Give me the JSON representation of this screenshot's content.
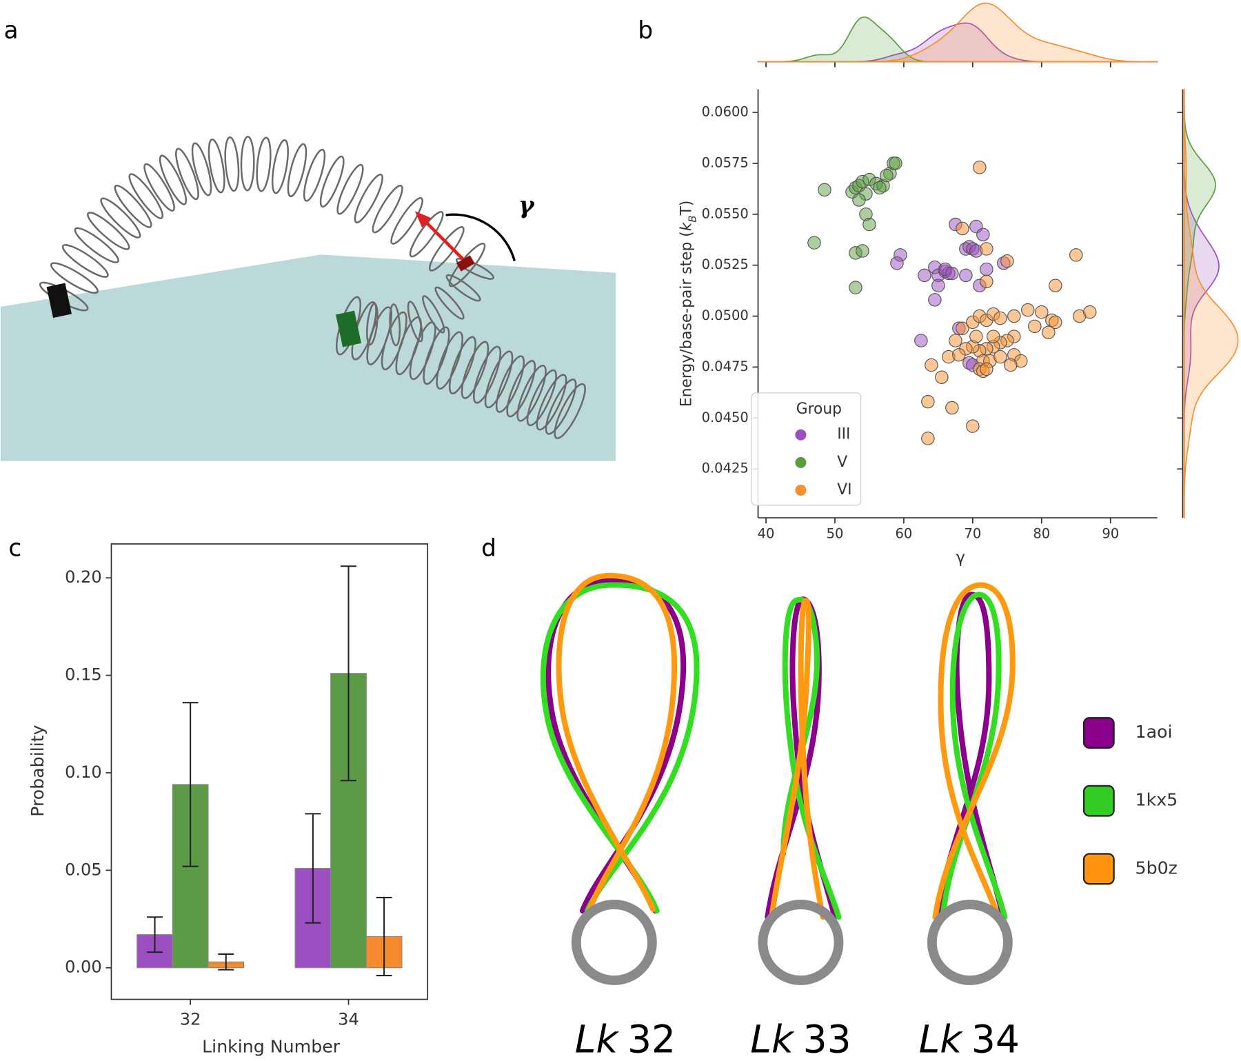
{
  "panel_a": {
    "label": "a",
    "annotation": "γ"
  },
  "chart_data": [
    {
      "type": "scatter",
      "panel_label": "b",
      "marginals": "kde",
      "xlabel": "γ",
      "ylabel": {
        "text": "Energy/base-pair step (",
        "italic": "k",
        "sub": "B",
        "end": "T)"
      },
      "legend_title": "Group",
      "xlim": [
        38.85,
        96.8
      ],
      "ylim": [
        0.0401,
        0.06113
      ],
      "xticks": [
        40,
        50,
        60,
        70,
        80,
        90
      ],
      "yticks": [
        {
          "value": 0.0425,
          "label": "0.0425"
        },
        {
          "value": 0.045,
          "label": "0.0450"
        },
        {
          "value": 0.0475,
          "label": "0.0475"
        },
        {
          "value": 0.05,
          "label": "0.0500"
        },
        {
          "value": 0.0525,
          "label": "0.0525"
        },
        {
          "value": 0.055,
          "label": "0.0550"
        },
        {
          "value": 0.0575,
          "label": "0.0575"
        },
        {
          "value": 0.06,
          "label": "0.0600"
        }
      ],
      "series": [
        {
          "name": "III",
          "color": "#9b4fc0",
          "x": [
            67.5,
            70.5,
            71.5,
            59.5,
            59,
            69,
            69.5,
            70,
            70.5,
            74.5,
            63,
            64.5,
            65,
            66,
            66.5,
            66,
            67,
            65,
            64.5,
            72,
            69,
            71,
            68,
            62.5,
            69.5,
            70
          ],
          "y": [
            0.0545,
            0.0544,
            0.054,
            0.053,
            0.0526,
            0.0533,
            0.0534,
            0.0533,
            0.0532,
            0.0526,
            0.052,
            0.0524,
            0.052,
            0.0522,
            0.0521,
            0.0523,
            0.0521,
            0.0515,
            0.0508,
            0.0523,
            0.052,
            0.0515,
            0.0494,
            0.0488,
            0.0477,
            0.0476
          ]
        },
        {
          "name": "V",
          "color": "#5c9e3f",
          "x": [
            48.5,
            47,
            52.5,
            53,
            53.5,
            54,
            55,
            56,
            57,
            58,
            58.5,
            58.8,
            57.5,
            56.5,
            54.5,
            54.5,
            55,
            53,
            54,
            53,
            53.5
          ],
          "y": [
            0.0562,
            0.0536,
            0.0561,
            0.0563,
            0.0564,
            0.0566,
            0.0567,
            0.0565,
            0.0564,
            0.057,
            0.0575,
            0.0575,
            0.0569,
            0.0563,
            0.056,
            0.055,
            0.0545,
            0.0531,
            0.0532,
            0.0514,
            0.0557
          ]
        },
        {
          "name": "VI",
          "color": "#f98f2f",
          "x": [
            71,
            68.5,
            72,
            75,
            85,
            82,
            72,
            68.5,
            70,
            71,
            72,
            73,
            74,
            76,
            78,
            80,
            81.5,
            82,
            85.5,
            87,
            79,
            81,
            76,
            75,
            74,
            73,
            72,
            71,
            70,
            69,
            67.5,
            66.5,
            68,
            71.5,
            72.5,
            74,
            76,
            77,
            75.5,
            71,
            71.5,
            72,
            64,
            65.5,
            63.5,
            67,
            70,
            63.5,
            73,
            70.5
          ],
          "y": [
            0.0573,
            0.0543,
            0.0533,
            0.0527,
            0.053,
            0.0515,
            0.0517,
            0.0494,
            0.0497,
            0.05,
            0.0498,
            0.0501,
            0.0499,
            0.05,
            0.0503,
            0.0502,
            0.0498,
            0.0497,
            0.05,
            0.0502,
            0.0495,
            0.0492,
            0.049,
            0.0488,
            0.0487,
            0.0485,
            0.0484,
            0.0483,
            0.0485,
            0.0484,
            0.0488,
            0.048,
            0.0481,
            0.0478,
            0.0478,
            0.048,
            0.0481,
            0.0478,
            0.0476,
            0.0474,
            0.0473,
            0.0474,
            0.0476,
            0.047,
            0.0458,
            0.0455,
            0.0446,
            0.044,
            0.049,
            0.049
          ]
        }
      ]
    },
    {
      "type": "bar",
      "panel_label": "c",
      "xlabel": "Linking Number",
      "ylabel": "Probability",
      "categories": [
        "32",
        "34"
      ],
      "ylim": [
        -0.0162,
        0.2174
      ],
      "yticks": [
        {
          "value": 0,
          "label": "0.00"
        },
        {
          "value": 0.05,
          "label": "0.05"
        },
        {
          "value": 0.1,
          "label": "0.10"
        },
        {
          "value": 0.15,
          "label": "0.15"
        },
        {
          "value": 0.2,
          "label": "0.20"
        }
      ],
      "series": [
        {
          "color": "#9b4fc0",
          "values": [
            0.017,
            0.051
          ],
          "errors": [
            0.009,
            0.028
          ]
        },
        {
          "color": "#5c9a45",
          "values": [
            0.094,
            0.151
          ],
          "errors": [
            0.042,
            0.055
          ]
        },
        {
          "color": "#f58a2e",
          "values": [
            0.003,
            0.016
          ],
          "errors": [
            0.004,
            0.02
          ]
        }
      ]
    }
  ],
  "panel_d": {
    "label": "d",
    "legend": [
      {
        "name": "1aoi",
        "color": "#8b008b"
      },
      {
        "name": "1kx5",
        "color": "#33cc22"
      },
      {
        "name": "5b0z",
        "color": "#ff9410"
      }
    ],
    "captions": [
      {
        "italic": "Lk",
        "text": "32"
      },
      {
        "italic": "Lk",
        "text": "33"
      },
      {
        "italic": "Lk",
        "text": "34"
      }
    ]
  }
}
